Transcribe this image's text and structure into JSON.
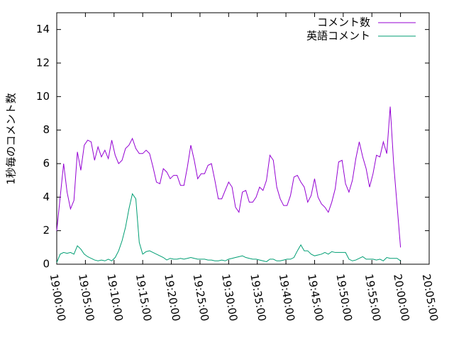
{
  "chart_data": {
    "type": "line",
    "ylabel": "1秒毎のコメント数",
    "x": [
      "19:00:00",
      "19:00:36",
      "19:01:12",
      "19:01:48",
      "19:02:24",
      "19:03:00",
      "19:03:36",
      "19:04:12",
      "19:04:48",
      "19:05:24",
      "19:06:00",
      "19:06:36",
      "19:07:12",
      "19:07:48",
      "19:08:24",
      "19:09:00",
      "19:09:36",
      "19:10:12",
      "19:10:48",
      "19:11:24",
      "19:12:00",
      "19:12:36",
      "19:13:12",
      "19:13:48",
      "19:14:24",
      "19:15:00",
      "19:15:36",
      "19:16:12",
      "19:16:48",
      "19:17:24",
      "19:18:00",
      "19:18:36",
      "19:19:12",
      "19:19:48",
      "19:20:24",
      "19:21:00",
      "19:21:36",
      "19:22:12",
      "19:22:48",
      "19:23:24",
      "19:24:00",
      "19:24:36",
      "19:25:12",
      "19:25:48",
      "19:26:24",
      "19:27:00",
      "19:27:36",
      "19:28:12",
      "19:28:48",
      "19:29:24",
      "19:30:00",
      "19:30:36",
      "19:31:12",
      "19:31:48",
      "19:32:24",
      "19:33:00",
      "19:33:36",
      "19:34:12",
      "19:34:48",
      "19:35:24",
      "19:36:00",
      "19:36:36",
      "19:37:12",
      "19:37:48",
      "19:38:24",
      "19:39:00",
      "19:39:36",
      "19:40:12",
      "19:40:48",
      "19:41:24",
      "19:42:00",
      "19:42:36",
      "19:43:12",
      "19:43:48",
      "19:44:24",
      "19:45:00",
      "19:45:36",
      "19:46:12",
      "19:46:48",
      "19:47:24",
      "19:48:00",
      "19:48:36",
      "19:49:12",
      "19:49:48",
      "19:50:24",
      "19:51:00",
      "19:51:36",
      "19:52:12",
      "19:52:48",
      "19:53:24",
      "19:54:00",
      "19:54:36",
      "19:55:12",
      "19:55:48",
      "19:56:24",
      "19:57:00",
      "19:57:36",
      "19:58:12",
      "19:58:48",
      "19:59:24",
      "20:00:00"
    ],
    "series": [
      {
        "name": "コメント数",
        "color": "#9400d3",
        "values": [
          2.0,
          4.0,
          6.0,
          4.3,
          3.3,
          3.8,
          6.7,
          5.6,
          7.1,
          7.4,
          7.3,
          6.2,
          7.0,
          6.4,
          6.8,
          6.3,
          7.4,
          6.5,
          6.0,
          6.2,
          6.9,
          7.1,
          7.5,
          6.9,
          6.6,
          6.6,
          6.8,
          6.6,
          5.8,
          4.9,
          4.8,
          5.7,
          5.5,
          5.1,
          5.3,
          5.3,
          4.7,
          4.7,
          5.8,
          7.1,
          6.2,
          5.1,
          5.4,
          5.4,
          5.9,
          6.0,
          5.0,
          3.9,
          3.9,
          4.4,
          4.9,
          4.6,
          3.4,
          3.1,
          4.3,
          4.4,
          3.7,
          3.7,
          4.0,
          4.6,
          4.4,
          5.0,
          6.5,
          6.2,
          4.6,
          3.9,
          3.5,
          3.5,
          4.1,
          5.2,
          5.3,
          4.9,
          4.6,
          3.7,
          4.1,
          5.1,
          4.0,
          3.6,
          3.4,
          3.1,
          3.7,
          4.5,
          6.1,
          6.2,
          4.8,
          4.3,
          5.0,
          6.3,
          7.3,
          6.4,
          5.7,
          4.6,
          5.4,
          6.5,
          6.4,
          7.3,
          6.6,
          9.4,
          6.0,
          3.5,
          1.0
        ]
      },
      {
        "name": "英語コメント",
        "color": "#009e73",
        "values": [
          0.1,
          0.6,
          0.7,
          0.65,
          0.7,
          0.6,
          1.1,
          0.9,
          0.6,
          0.45,
          0.35,
          0.25,
          0.2,
          0.25,
          0.2,
          0.3,
          0.2,
          0.4,
          0.8,
          1.4,
          2.2,
          3.3,
          4.2,
          3.9,
          1.3,
          0.6,
          0.75,
          0.8,
          0.7,
          0.6,
          0.5,
          0.4,
          0.25,
          0.35,
          0.3,
          0.3,
          0.35,
          0.3,
          0.35,
          0.4,
          0.35,
          0.3,
          0.3,
          0.3,
          0.25,
          0.25,
          0.2,
          0.2,
          0.25,
          0.2,
          0.3,
          0.35,
          0.4,
          0.45,
          0.5,
          0.4,
          0.35,
          0.3,
          0.3,
          0.25,
          0.2,
          0.15,
          0.3,
          0.3,
          0.2,
          0.2,
          0.25,
          0.3,
          0.3,
          0.4,
          0.8,
          1.15,
          0.8,
          0.8,
          0.6,
          0.5,
          0.55,
          0.6,
          0.7,
          0.6,
          0.75,
          0.7,
          0.7,
          0.7,
          0.7,
          0.3,
          0.2,
          0.25,
          0.35,
          0.45,
          0.3,
          0.3,
          0.3,
          0.25,
          0.3,
          0.2,
          0.4,
          0.35,
          0.35,
          0.35,
          0.2
        ]
      }
    ],
    "xlim": [
      "19:00:00",
      "20:05:00"
    ],
    "xticks": [
      "19:00:00",
      "19:05:00",
      "19:10:00",
      "19:15:00",
      "19:20:00",
      "19:25:00",
      "19:30:00",
      "19:35:00",
      "19:40:00",
      "19:45:00",
      "19:50:00",
      "19:55:00",
      "20:00:00",
      "20:05:00"
    ],
    "ylim": [
      0,
      15
    ],
    "yticks": [
      0,
      2,
      4,
      6,
      8,
      10,
      12,
      14
    ],
    "legend": "top-right"
  }
}
